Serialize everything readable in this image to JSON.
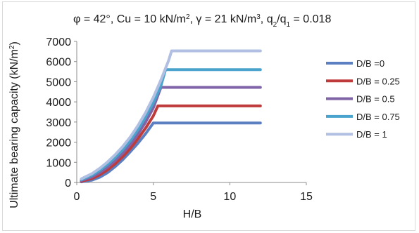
{
  "chart_data": {
    "type": "line",
    "title_parts": {
      "phi": "φ = 42°",
      "sep1": ", ",
      "cu_prefix": "Cu = 10 kN/m",
      "cu_exp": "2",
      "sep2": ", ",
      "gamma_prefix": "γ = 21 kN/m",
      "gamma_exp": "3",
      "sep3": ", ",
      "q2": "q",
      "q2_sub": "2",
      "slash": "/q",
      "q1_sub": "1",
      "q_value": " = 0.018"
    },
    "xlabel": "H/B",
    "ylabel_prefix": "Ultimate bearing capacity (kN/m",
    "ylabel_exp": "2",
    "ylabel_suffix": ")",
    "xlim": [
      0,
      15
    ],
    "ylim": [
      0,
      7000
    ],
    "xticks": [
      "0",
      "5",
      "10",
      "15"
    ],
    "yticks": [
      "0",
      "1000",
      "2000",
      "3000",
      "4000",
      "5000",
      "6000",
      "7000"
    ],
    "grid": false,
    "legend_position": "right",
    "series": [
      {
        "name": "D/B =0",
        "color": "#5b7fc0",
        "x": [
          0.3,
          1,
          1.5,
          2,
          2.5,
          3,
          3.5,
          4,
          4.5,
          5,
          12
        ],
        "y": [
          30,
          120,
          260,
          480,
          780,
          1130,
          1530,
          1950,
          2420,
          2950,
          2950
        ]
      },
      {
        "name": "D/B = 0.25",
        "color": "#bf3a3a",
        "x": [
          0.3,
          1,
          1.5,
          2,
          2.5,
          3,
          3.5,
          4,
          4.5,
          5,
          5.3,
          12
        ],
        "y": [
          60,
          200,
          380,
          620,
          920,
          1280,
          1690,
          2170,
          2700,
          3300,
          3800,
          3800
        ]
      },
      {
        "name": "D/B = 0.5",
        "color": "#8064a8",
        "x": [
          0.3,
          1,
          1.5,
          2,
          2.5,
          3,
          3.5,
          4,
          4.5,
          5,
          5.5,
          12
        ],
        "y": [
          100,
          280,
          490,
          760,
          1080,
          1450,
          1890,
          2400,
          3000,
          3700,
          4720,
          4720
        ]
      },
      {
        "name": "D/B = 0.75",
        "color": "#4aa3cc",
        "x": [
          0.3,
          1,
          1.5,
          2,
          2.5,
          3,
          3.5,
          4,
          4.5,
          5,
          5.5,
          5.8,
          12
        ],
        "y": [
          140,
          360,
          600,
          890,
          1230,
          1620,
          2080,
          2620,
          3250,
          3950,
          4800,
          5600,
          5600
        ]
      },
      {
        "name": "D/B = 1",
        "color": "#b0bfe2",
        "x": [
          0.3,
          1,
          1.5,
          2,
          2.5,
          3,
          3.5,
          4,
          4.5,
          5,
          5.5,
          6,
          6.2,
          12
        ],
        "y": [
          180,
          440,
          700,
          1010,
          1370,
          1780,
          2260,
          2820,
          3470,
          4220,
          5080,
          6050,
          6530,
          6530
        ]
      }
    ]
  }
}
